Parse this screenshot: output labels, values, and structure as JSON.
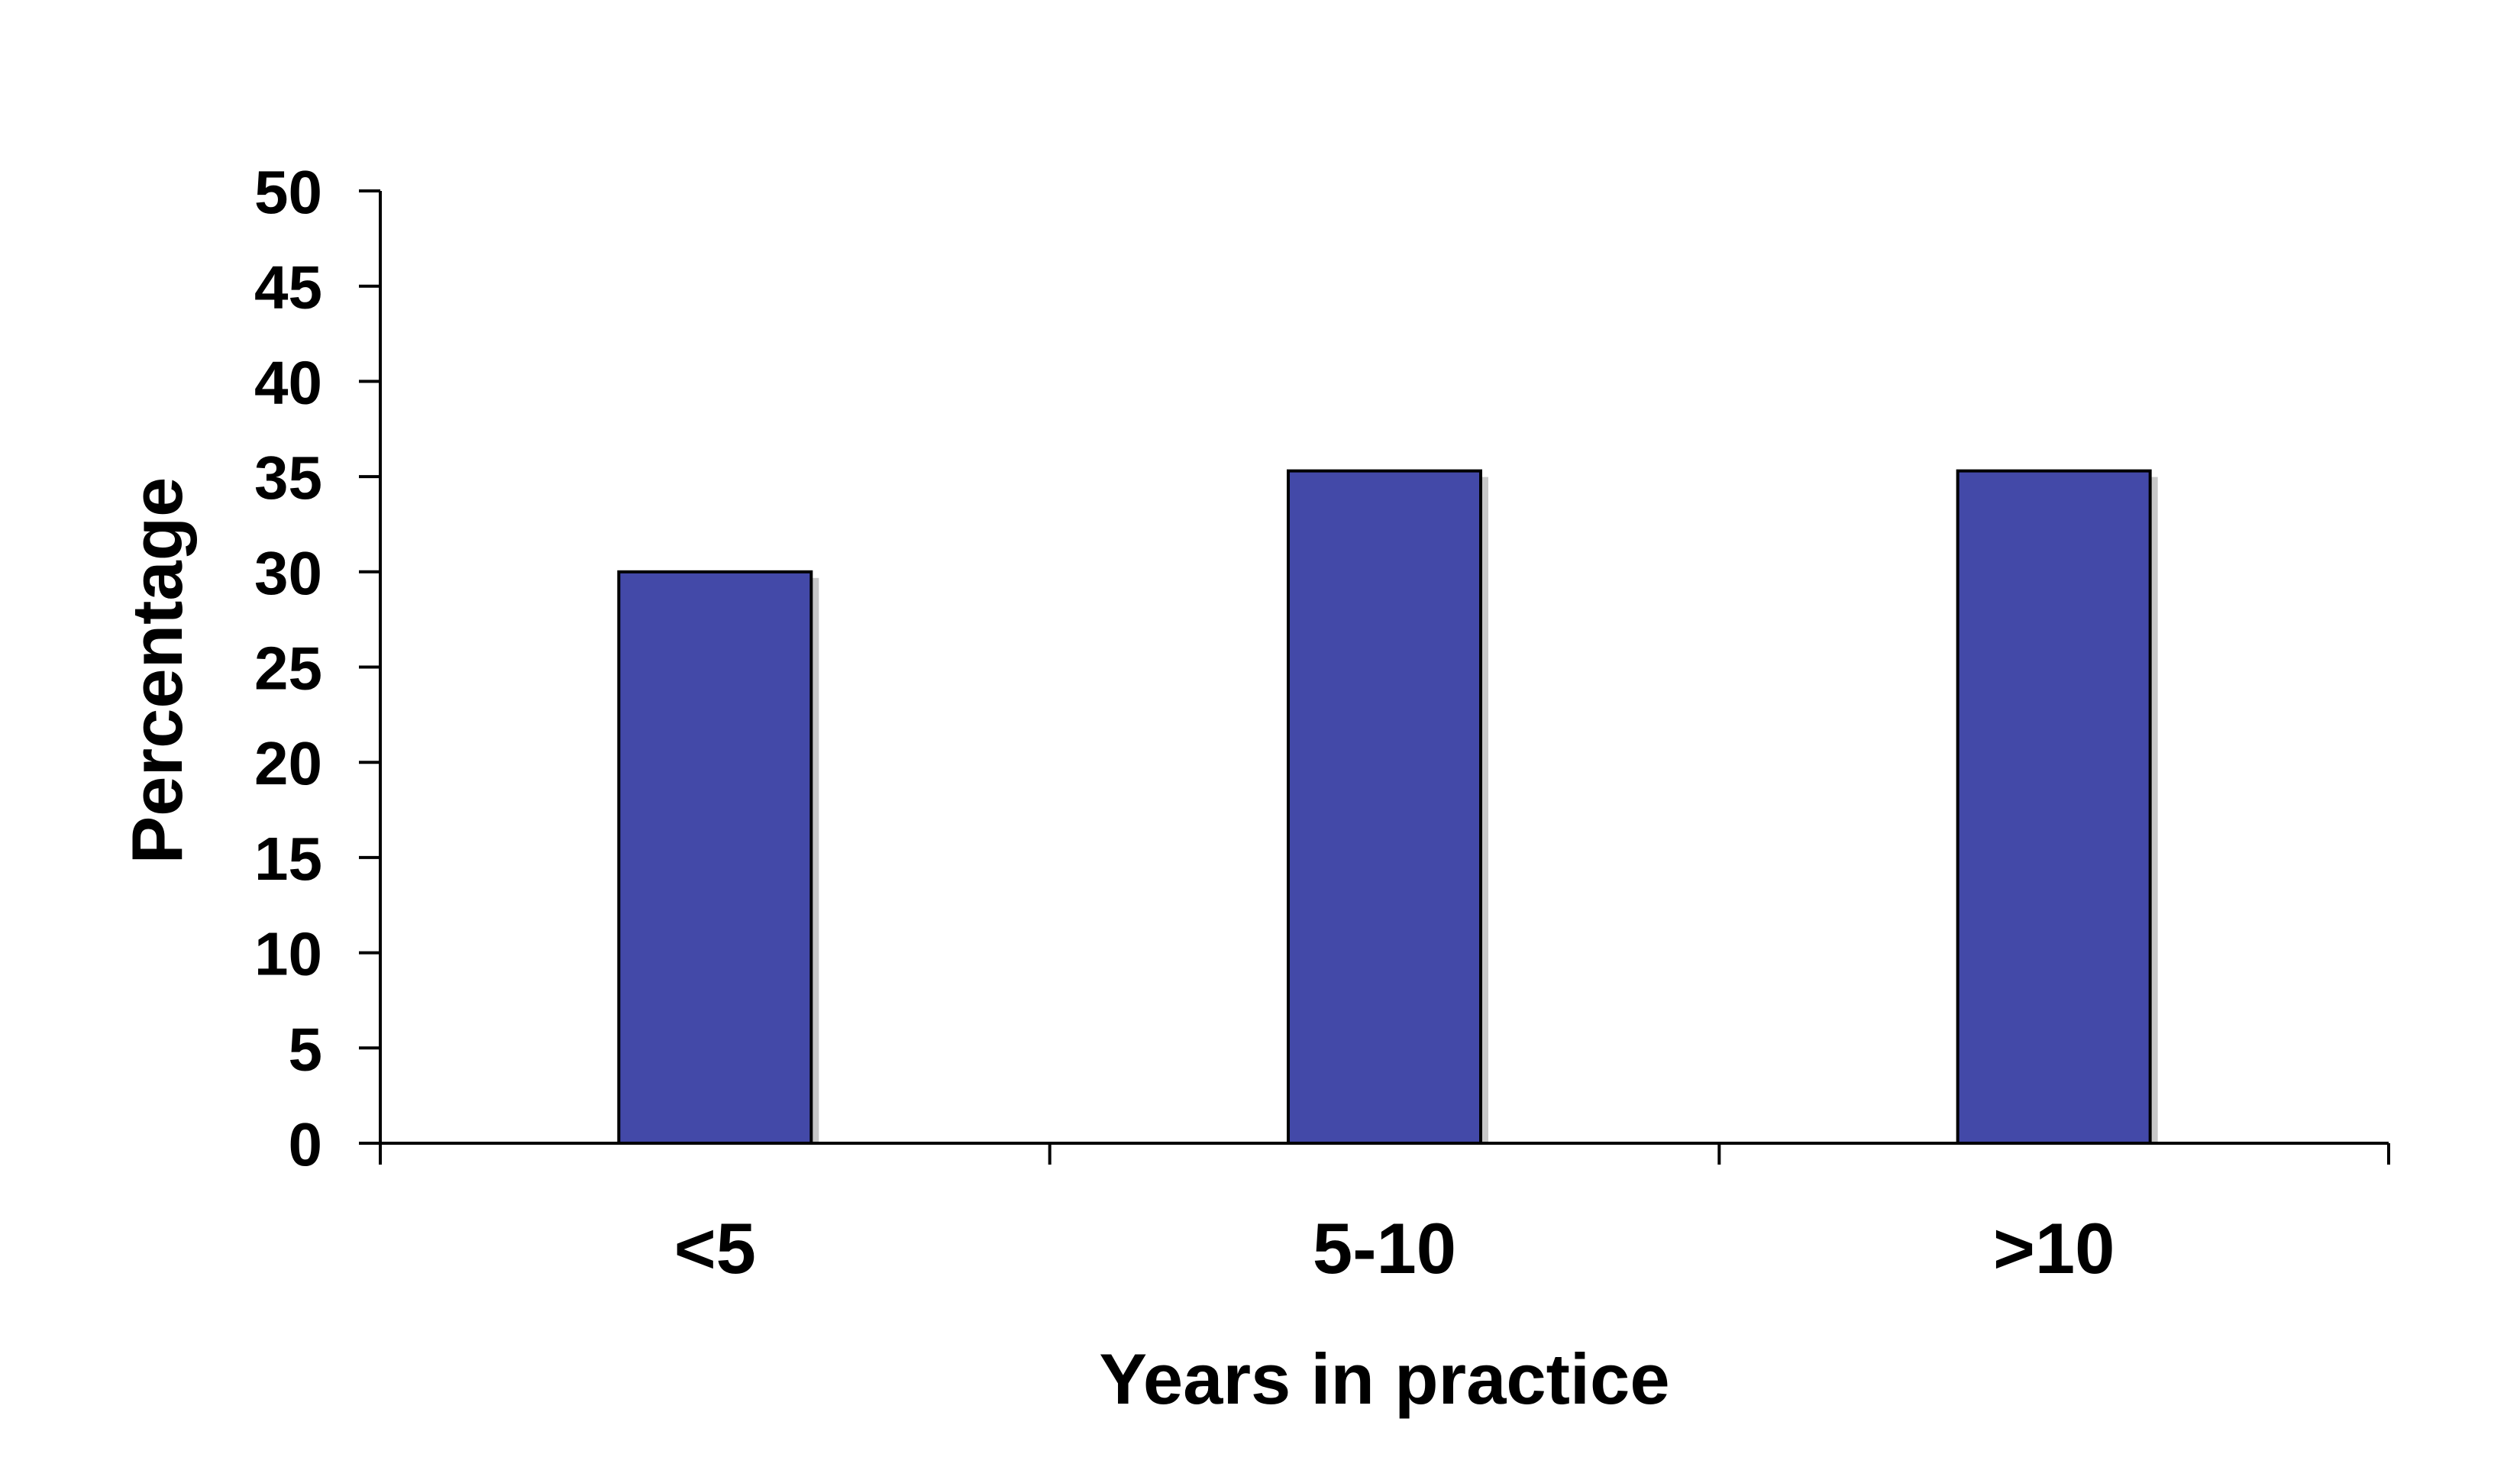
{
  "chart_data": {
    "type": "bar",
    "title": "",
    "xlabel": "Years in practice",
    "ylabel": "Percentage",
    "categories": [
      "<5",
      "5-10",
      ">10"
    ],
    "values": [
      30,
      35.3,
      35.3
    ],
    "ylim": [
      0,
      50
    ],
    "yticks": [
      "0",
      "5",
      "10",
      "15",
      "20",
      "25",
      "30",
      "35",
      "40",
      "45",
      "50"
    ],
    "grid": false,
    "legend": "none",
    "colors": {
      "bar_fill": "#4349A8",
      "bar_stroke": "#000000",
      "bar_shadow": "#C8C8C8",
      "axis": "#000000"
    }
  }
}
